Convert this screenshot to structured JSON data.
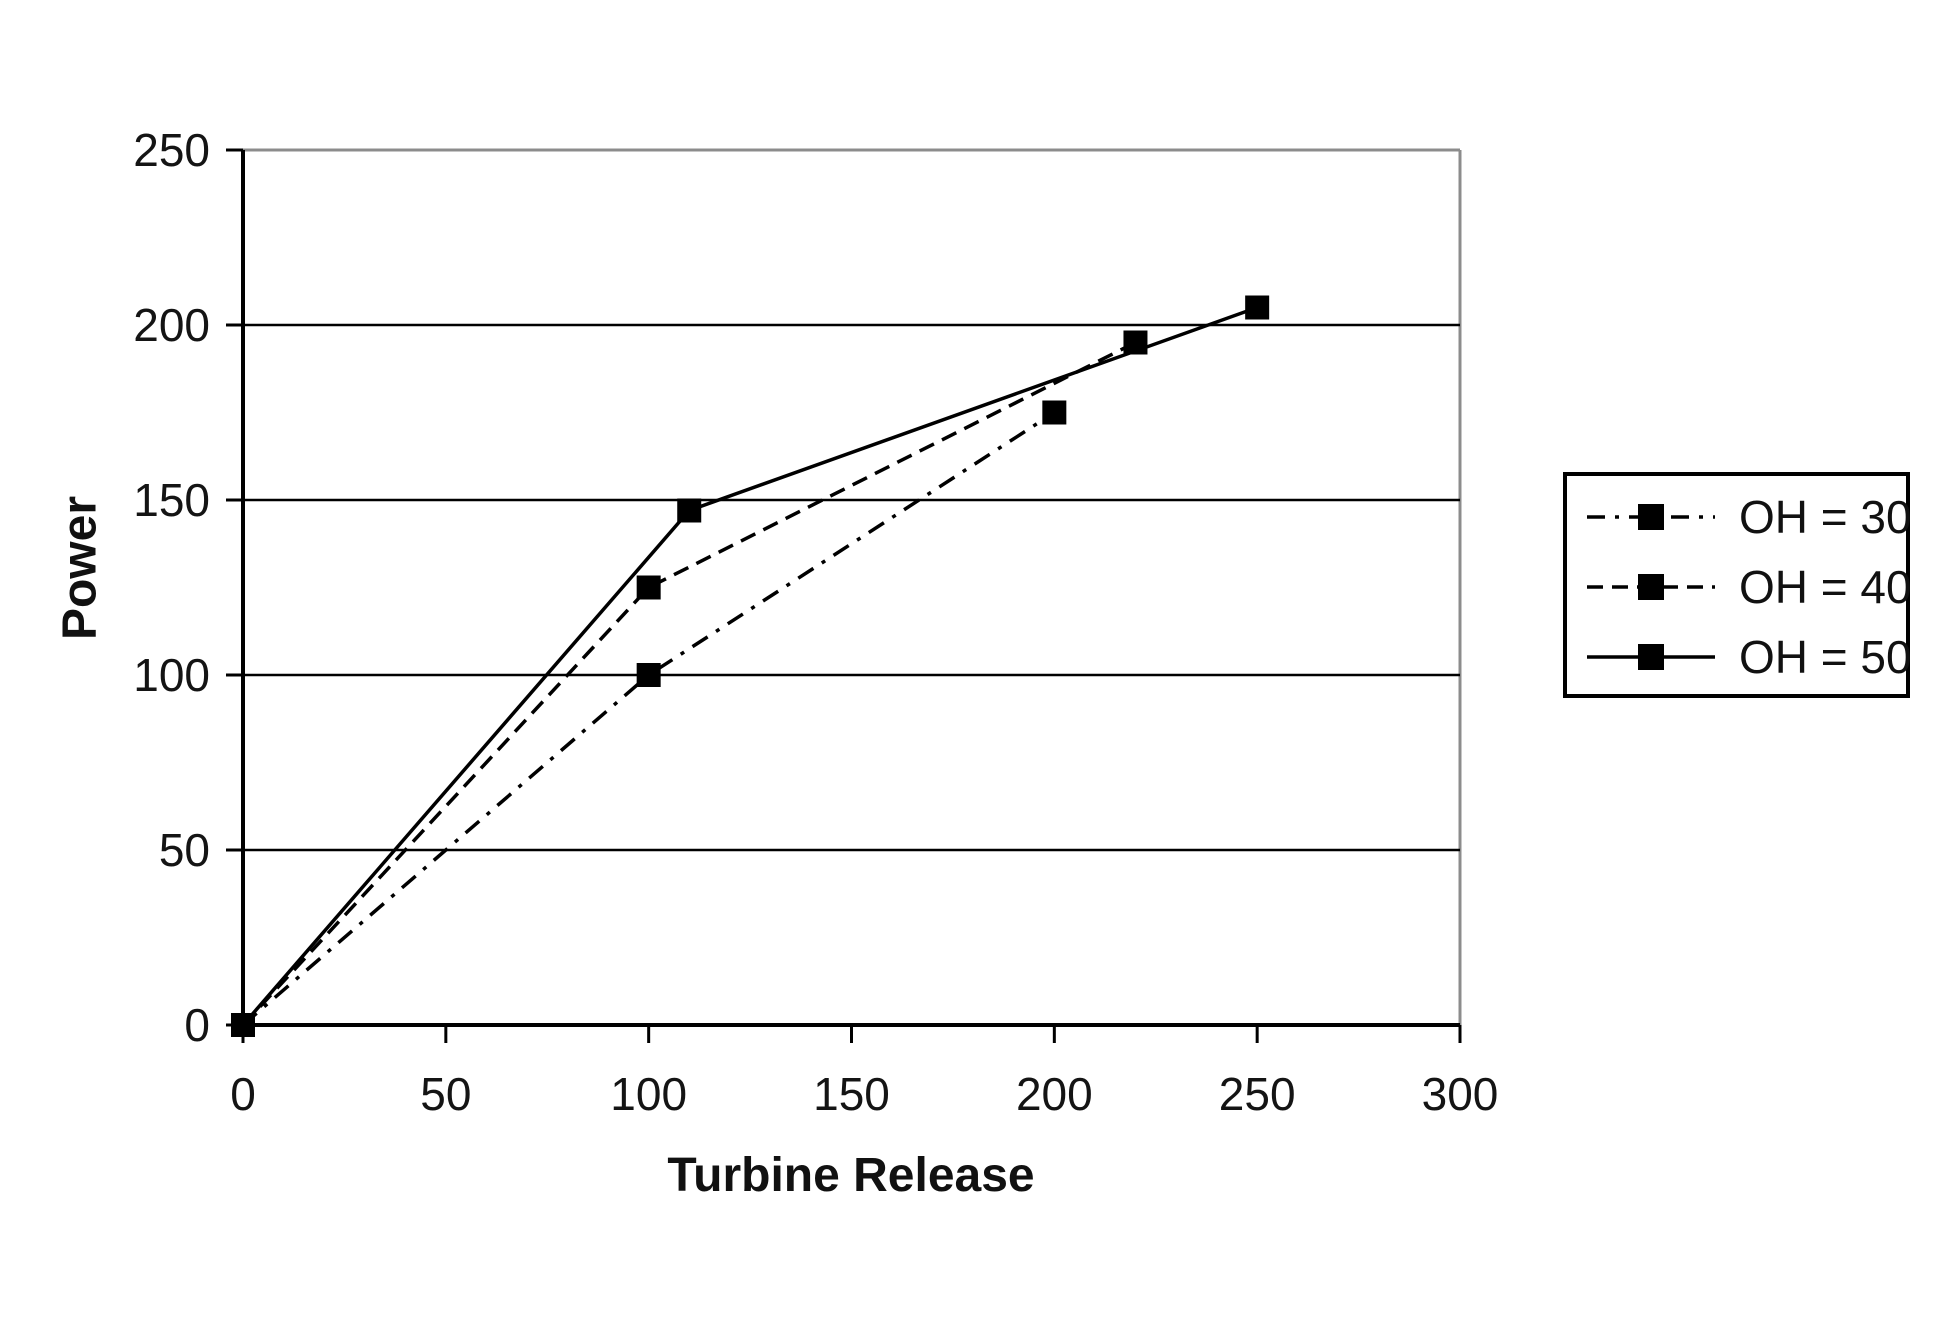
{
  "chart_data": {
    "type": "line",
    "xlabel": "Turbine Release",
    "ylabel": "Power",
    "xlim": [
      0,
      300
    ],
    "ylim": [
      0,
      250
    ],
    "xticks": [
      0,
      50,
      100,
      150,
      200,
      250,
      300
    ],
    "yticks": [
      0,
      50,
      100,
      150,
      200,
      250
    ],
    "grid": "horizontal",
    "legend_position": "right",
    "marker": "square",
    "line_color": "#000000",
    "gridline_color": "#000000",
    "plot_border_color": "#8c8c8c",
    "series": [
      {
        "name": "OH = 30",
        "line_style": "dash-dot",
        "points": [
          [
            0,
            0
          ],
          [
            100,
            100
          ],
          [
            200,
            175
          ]
        ]
      },
      {
        "name": "OH = 40",
        "line_style": "dashed",
        "points": [
          [
            0,
            0
          ],
          [
            100,
            125
          ],
          [
            220,
            195
          ]
        ]
      },
      {
        "name": "OH = 50",
        "line_style": "solid",
        "points": [
          [
            0,
            0
          ],
          [
            110,
            147
          ],
          [
            250,
            205
          ]
        ]
      }
    ]
  }
}
